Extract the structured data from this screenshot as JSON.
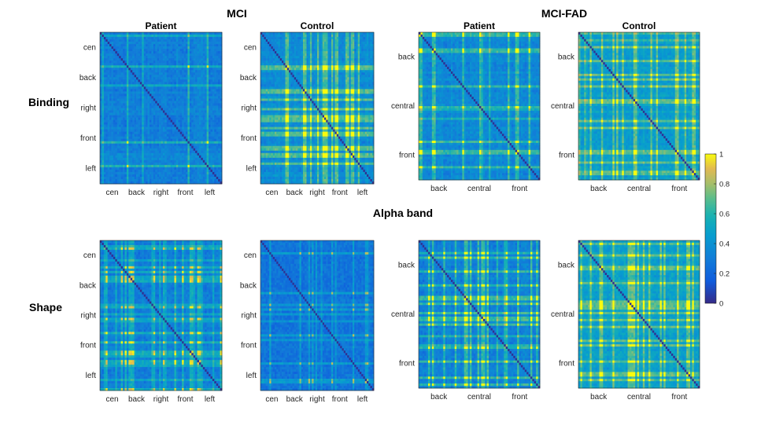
{
  "figure": {
    "group_titles": [
      "MCI",
      "MCI-FAD"
    ],
    "row_labels": [
      "Binding",
      "Shape"
    ],
    "middle_label": "Alpha band"
  },
  "chart_data": {
    "type": "heatmap",
    "colormap": "parula",
    "color_range": [
      0,
      1
    ],
    "colorbar_ticks": [
      "0",
      "0.2",
      "0.4",
      "0.6",
      "0.8",
      "1"
    ],
    "panels": [
      {
        "group": "MCI",
        "condition": "Binding",
        "title": "Patient",
        "ticks": [
          "cen",
          "back",
          "right",
          "front",
          "left"
        ],
        "mean_level": 0.32,
        "strong_ranges": [
          [
            0.55,
            0.95
          ]
        ],
        "hot_level": 0.62
      },
      {
        "group": "MCI",
        "condition": "Binding",
        "title": "Control",
        "ticks": [
          "cen",
          "back",
          "right",
          "front",
          "left"
        ],
        "mean_level": 0.38,
        "strong_ranges": [
          [
            0.15,
            0.95
          ]
        ],
        "hot_level": 0.72
      },
      {
        "group": "MCI-FAD",
        "condition": "Binding",
        "title": "Patient",
        "ticks": [
          "back",
          "central",
          "front"
        ],
        "mean_level": 0.36,
        "strong_ranges": [
          [
            0.05,
            0.4
          ],
          [
            0.7,
            0.95
          ]
        ],
        "hot_level": 0.66
      },
      {
        "group": "MCI-FAD",
        "condition": "Binding",
        "title": "Control",
        "ticks": [
          "back",
          "central",
          "front"
        ],
        "mean_level": 0.46,
        "strong_ranges": [
          [
            0.05,
            0.95
          ]
        ],
        "hot_level": 0.72
      },
      {
        "group": "MCI",
        "condition": "Shape",
        "title": "",
        "ticks": [
          "cen",
          "back",
          "right",
          "front",
          "left"
        ],
        "mean_level": 0.32,
        "strong_ranges": [
          [
            0.55,
            0.75
          ]
        ],
        "hot_level": 0.56
      },
      {
        "group": "MCI",
        "condition": "Shape",
        "title": "",
        "ticks": [
          "cen",
          "back",
          "right",
          "front",
          "left"
        ],
        "mean_level": 0.3,
        "strong_ranges": [],
        "hot_level": 0.46
      },
      {
        "group": "MCI-FAD",
        "condition": "Shape",
        "title": "",
        "ticks": [
          "back",
          "central",
          "front"
        ],
        "mean_level": 0.32,
        "strong_ranges": [
          [
            0.3,
            0.6
          ]
        ],
        "hot_level": 0.68
      },
      {
        "group": "MCI-FAD",
        "condition": "Shape",
        "title": "",
        "ticks": [
          "back",
          "central",
          "front"
        ],
        "mean_level": 0.48,
        "strong_ranges": [
          [
            0.05,
            0.95
          ]
        ],
        "hot_level": 0.7
      }
    ]
  }
}
